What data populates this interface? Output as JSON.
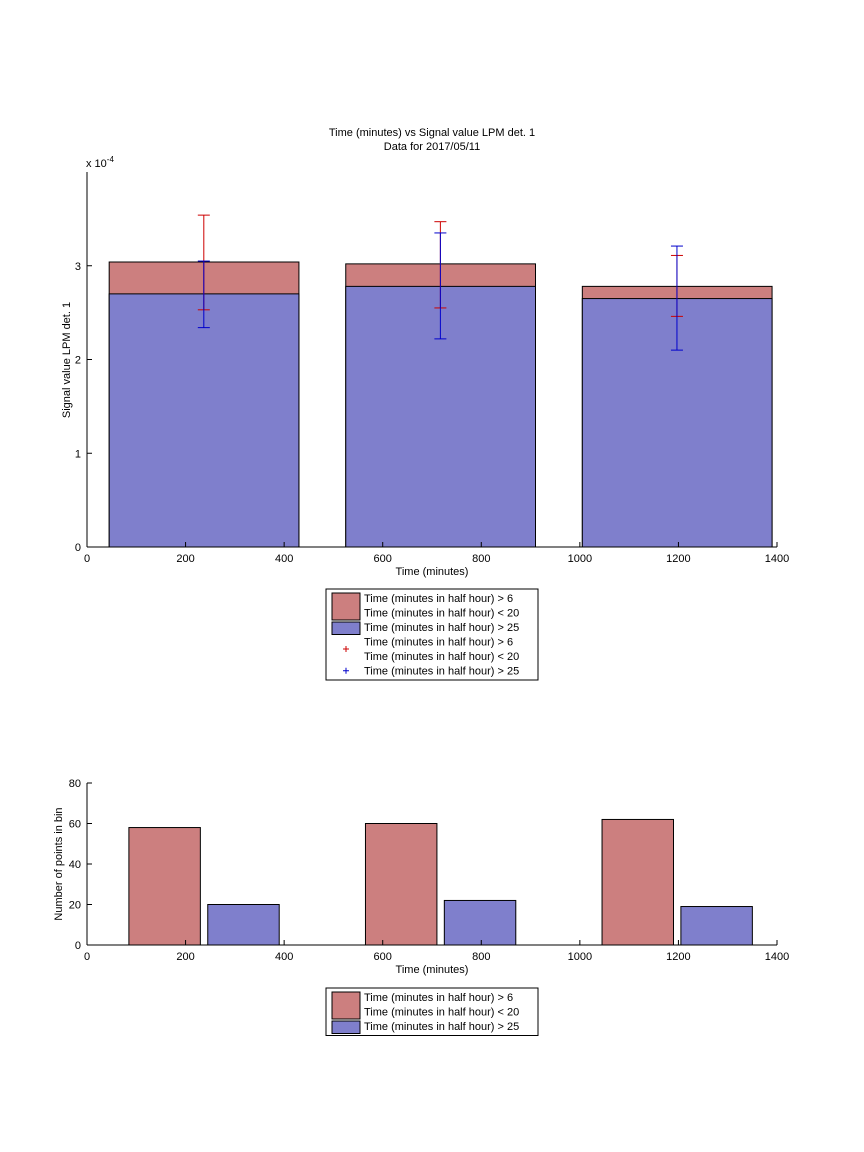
{
  "colors": {
    "red": "#cc7f7f",
    "blue": "#7f7fcc",
    "err_red": "#cc0000",
    "err_blue": "#0000cc"
  },
  "chart_data": [
    {
      "type": "bar",
      "title": "Time (minutes) vs Signal value LPM det. 1",
      "subtitle": "Data for 2017/05/11",
      "xlabel": "Time (minutes)",
      "ylabel": "Signal value LPM det. 1",
      "exponent_label": "x 10",
      "exponent_power": "-4",
      "xlim": [
        0,
        1400
      ],
      "ylim": [
        0,
        4
      ],
      "xticks": [
        "0",
        "200",
        "400",
        "600",
        "800",
        "1000",
        "1200",
        "1400"
      ],
      "yticks": [
        "0",
        "1",
        "2",
        "3"
      ],
      "bars": [
        {
          "x0": 45,
          "x1": 430,
          "red": 3.04,
          "blue": 2.7
        },
        {
          "x0": 525,
          "x1": 910,
          "red": 3.02,
          "blue": 2.78
        },
        {
          "x0": 1005,
          "x1": 1390,
          "red": 2.78,
          "blue": 2.65
        }
      ],
      "series": [
        {
          "name": "Time (minutes in half hour) > 6\nTime (minutes in half hour) < 20",
          "kind": "errorbar",
          "color": "red",
          "points": [
            {
              "x": 237,
              "y": 2.9,
              "lo": 2.53,
              "hi": 3.54
            },
            {
              "x": 717,
              "y": 2.95,
              "lo": 2.55,
              "hi": 3.47
            },
            {
              "x": 1197,
              "y": 2.8,
              "lo": 2.46,
              "hi": 3.11
            }
          ]
        },
        {
          "name": "Time (minutes in half hour) > 25",
          "kind": "errorbar",
          "color": "blue",
          "points": [
            {
              "x": 237,
              "y": 2.7,
              "lo": 2.34,
              "hi": 3.05
            },
            {
              "x": 717,
              "y": 2.78,
              "lo": 2.22,
              "hi": 3.35
            },
            {
              "x": 1197,
              "y": 2.65,
              "lo": 2.1,
              "hi": 3.21
            }
          ]
        }
      ],
      "legend": [
        {
          "lines": [
            "Time (minutes in half hour) > 6",
            "Time (minutes in half hour) < 20"
          ],
          "marker": "patch",
          "color": "red"
        },
        {
          "lines": [
            "Time (minutes in half hour) > 25"
          ],
          "marker": "patch",
          "color": "blue"
        },
        {
          "lines": [
            "Time (minutes in half hour) > 6",
            "Time (minutes in half hour) < 20"
          ],
          "marker": "plus",
          "color": "err_red"
        },
        {
          "lines": [
            "Time (minutes in half hour) > 25"
          ],
          "marker": "plus",
          "color": "err_blue"
        }
      ],
      "legend_placement": "below"
    },
    {
      "type": "bar",
      "xlabel": "Time (minutes)",
      "ylabel": "Number of points in bin",
      "xlim": [
        0,
        1400
      ],
      "ylim": [
        0,
        80
      ],
      "xticks": [
        "0",
        "200",
        "400",
        "600",
        "800",
        "1000",
        "1200",
        "1400"
      ],
      "yticks": [
        "0",
        "20",
        "40",
        "60",
        "80"
      ],
      "bars": [
        {
          "x0": 85,
          "x1": 230,
          "value": 58,
          "color": "red"
        },
        {
          "x0": 245,
          "x1": 390,
          "value": 20,
          "color": "blue"
        },
        {
          "x0": 565,
          "x1": 710,
          "value": 60,
          "color": "red"
        },
        {
          "x0": 725,
          "x1": 870,
          "value": 22,
          "color": "blue"
        },
        {
          "x0": 1045,
          "x1": 1190,
          "value": 62,
          "color": "red"
        },
        {
          "x0": 1205,
          "x1": 1350,
          "value": 19,
          "color": "blue"
        }
      ],
      "legend": [
        {
          "lines": [
            "Time (minutes in half hour) > 6",
            "Time (minutes in half hour) < 20"
          ],
          "marker": "patch",
          "color": "red"
        },
        {
          "lines": [
            "Time (minutes in half hour) > 25"
          ],
          "marker": "patch",
          "color": "blue"
        }
      ],
      "legend_placement": "below"
    }
  ]
}
